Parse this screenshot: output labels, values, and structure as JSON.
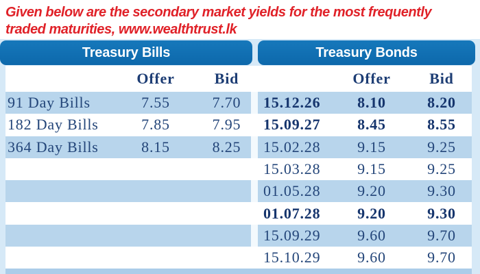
{
  "intro": {
    "line1": "Given below are the secondary market yields for the most frequently",
    "line2": "traded maturities, www.wealthtrust.lk"
  },
  "colors": {
    "header_pill_blue": "#0f6db1",
    "row_light_blue": "#b8d5ec",
    "text_navy": "#234579",
    "intro_red": "#e02128",
    "page_light_blue": "#d6e9f7"
  },
  "chart_data": {
    "type": "table",
    "title": "Secondary market yields for the most frequently traded maturities",
    "source": "www.wealthtrust.lk",
    "sections": [
      {
        "title": "Treasury Bills",
        "columns": [
          "Offer",
          "Bid"
        ],
        "rows": [
          {
            "label": "91 Day Bills",
            "offer": "7.55",
            "bid": "7.70",
            "bold": false
          },
          {
            "label": "182 Day Bills",
            "offer": "7.85",
            "bid": "7.95",
            "bold": false
          },
          {
            "label": "364 Day Bills",
            "offer": "8.15",
            "bid": "8.25",
            "bold": false
          }
        ]
      },
      {
        "title": "Treasury Bonds",
        "columns": [
          "Offer",
          "Bid"
        ],
        "rows": [
          {
            "label": "15.12.26",
            "offer": "8.10",
            "bid": "8.20",
            "bold": true
          },
          {
            "label": "15.09.27",
            "offer": "8.45",
            "bid": "8.55",
            "bold": true
          },
          {
            "label": "15.02.28",
            "offer": "9.15",
            "bid": "9.25",
            "bold": false
          },
          {
            "label": "15.03.28",
            "offer": "9.15",
            "bid": "9.25",
            "bold": false
          },
          {
            "label": "01.05.28",
            "offer": "9.20",
            "bid": "9.30",
            "bold": false
          },
          {
            "label": "01.07.28",
            "offer": "9.20",
            "bid": "9.30",
            "bold": true
          },
          {
            "label": "15.09.29",
            "offer": "9.60",
            "bid": "9.70",
            "bold": false
          },
          {
            "label": "15.10.29",
            "offer": "9.60",
            "bid": "9.70",
            "bold": false
          }
        ]
      }
    ]
  }
}
